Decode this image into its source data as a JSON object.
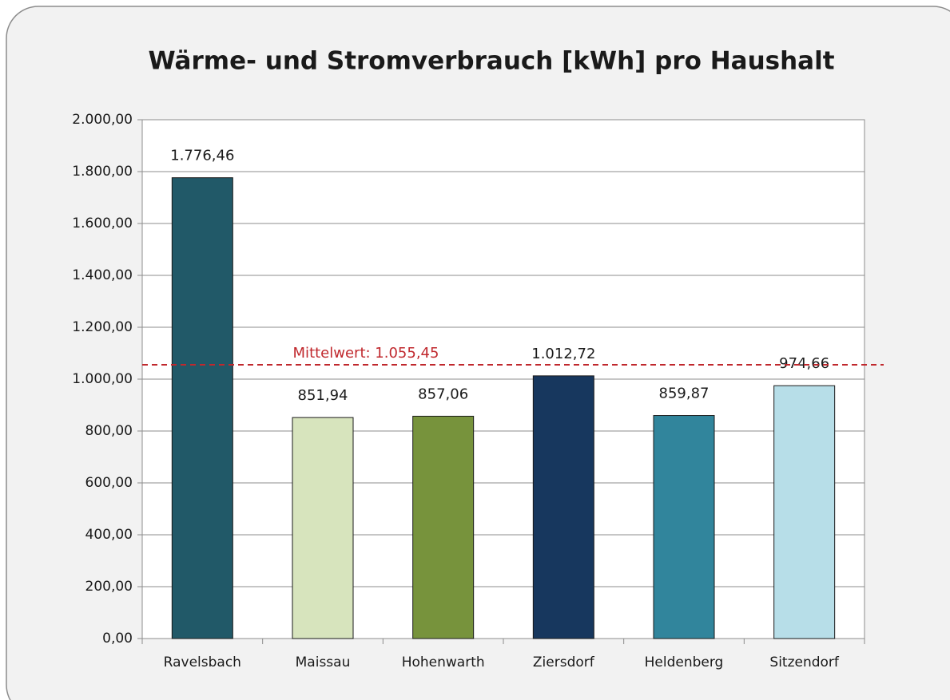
{
  "chart_data": {
    "type": "bar",
    "title": "Wärme- und Stromverbrauch [kWh] pro Haushalt",
    "categories": [
      "Ravelsbach",
      "Maissau",
      "Hohenwarth",
      "Ziersdorf",
      "Heldenberg",
      "Sitzendorf"
    ],
    "values": [
      1776.46,
      851.94,
      857.06,
      1012.72,
      859.87,
      974.66
    ],
    "value_labels": [
      "1.776,46",
      "851,94",
      "857,06",
      "1.012,72",
      "859,87",
      "974,66"
    ],
    "colors": [
      "#215968",
      "#d7e4bd",
      "#77933c",
      "#17375e",
      "#31859c",
      "#b7dee8"
    ],
    "ylim": [
      0,
      2000
    ],
    "yticks": [
      {
        "value": 0,
        "label": "0,00"
      },
      {
        "value": 200,
        "label": "200,00"
      },
      {
        "value": 400,
        "label": "400,00"
      },
      {
        "value": 600,
        "label": "600,00"
      },
      {
        "value": 800,
        "label": "800,00"
      },
      {
        "value": 1000,
        "label": "1.000,00"
      },
      {
        "value": 1200,
        "label": "1.200,00"
      },
      {
        "value": 1400,
        "label": "1.400,00"
      },
      {
        "value": 1600,
        "label": "1.600,00"
      },
      {
        "value": 1800,
        "label": "1.800,00"
      },
      {
        "value": 2000,
        "label": "2.000,00"
      }
    ],
    "grid": true,
    "mean_line": {
      "value": 1055.45,
      "label": "Mittelwert: 1.055,45",
      "color": "#c0282d"
    }
  }
}
